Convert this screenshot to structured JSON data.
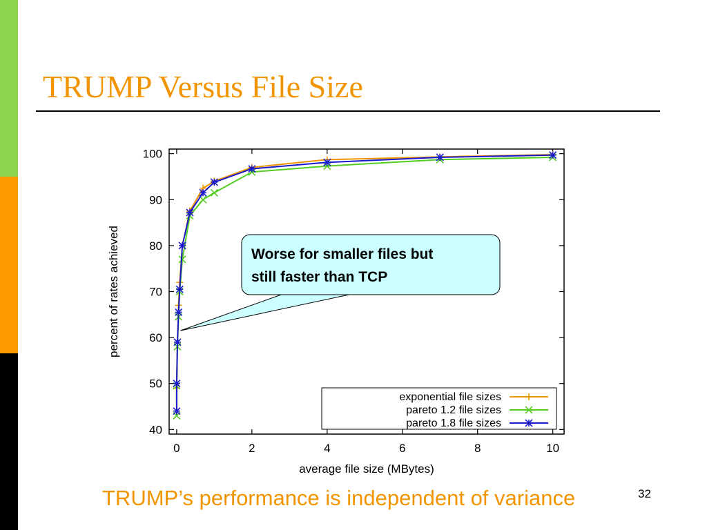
{
  "slide": {
    "title": "TRUMP Versus File Size",
    "caption": "TRUMP’s performance is independent of variance",
    "page_number": "32",
    "sidebar_colors": [
      "#8dd34b",
      "#ff9b00",
      "#000000"
    ],
    "title_color": "#f29400"
  },
  "callout": {
    "line1": "Worse for smaller files but",
    "line2": "still faster than TCP",
    "fill": "#ccffff",
    "target_x": 0.1,
    "target_y": 61.5
  },
  "chart_data": {
    "type": "line",
    "title": "",
    "xlabel": "average file size (MBytes)",
    "ylabel": "percent of rates achieved",
    "xlim": [
      -0.2,
      10.3
    ],
    "ylim": [
      39,
      101
    ],
    "xticks": [
      0,
      2,
      4,
      6,
      8,
      10
    ],
    "yticks": [
      40,
      50,
      60,
      70,
      80,
      90,
      100
    ],
    "grid": false,
    "legend_position": "bottom-right",
    "series": [
      {
        "name": "exponential file sizes",
        "color": "#f29400",
        "marker": "plus",
        "points": [
          [
            0.0,
            44
          ],
          [
            0.0,
            49
          ],
          [
            0.02,
            59
          ],
          [
            0.05,
            67
          ],
          [
            0.08,
            72
          ],
          [
            0.15,
            80
          ],
          [
            0.35,
            87.5
          ],
          [
            0.7,
            92.5
          ],
          [
            1.0,
            94
          ],
          [
            2.0,
            97
          ],
          [
            4.0,
            98.7
          ],
          [
            7.0,
            99.3
          ],
          [
            10.0,
            99.8
          ]
        ]
      },
      {
        "name": "pareto 1.2 file sizes",
        "color": "#55cc22",
        "marker": "x",
        "points": [
          [
            0.0,
            43
          ],
          [
            0.0,
            49.5
          ],
          [
            0.02,
            58
          ],
          [
            0.05,
            64.5
          ],
          [
            0.08,
            70
          ],
          [
            0.15,
            77
          ],
          [
            0.35,
            86.5
          ],
          [
            0.7,
            90
          ],
          [
            1.0,
            91.5
          ],
          [
            2.0,
            96
          ],
          [
            4.0,
            97.3
          ],
          [
            7.0,
            98.7
          ],
          [
            10.0,
            99.2
          ]
        ]
      },
      {
        "name": "pareto 1.8 file sizes",
        "color": "#1a1acc",
        "marker": "star",
        "points": [
          [
            0.0,
            44
          ],
          [
            0.0,
            50
          ],
          [
            0.02,
            59
          ],
          [
            0.05,
            65.5
          ],
          [
            0.08,
            70.5
          ],
          [
            0.15,
            80
          ],
          [
            0.35,
            87.2
          ],
          [
            0.7,
            91.5
          ],
          [
            1.0,
            93.8
          ],
          [
            2.0,
            96.7
          ],
          [
            4.0,
            98.1
          ],
          [
            7.0,
            99.2
          ],
          [
            10.0,
            99.7
          ]
        ]
      }
    ]
  }
}
